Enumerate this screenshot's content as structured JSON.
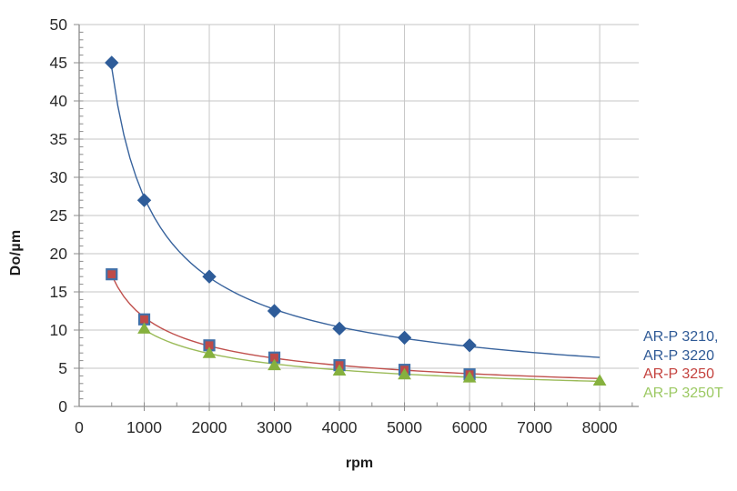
{
  "chart_data": {
    "type": "scatter",
    "title": "",
    "xlabel": "rpm",
    "ylabel": "Do/µm",
    "x_axis": {
      "min": 0,
      "max": 8600,
      "major_step": 1000,
      "minor_step": 500,
      "last_labeled_tick": 8000,
      "tick_labels": [
        "0",
        "1000",
        "2000",
        "3000",
        "4000",
        "5000",
        "6000",
        "7000",
        "8000"
      ]
    },
    "y_axis": {
      "min": 0,
      "max": 50,
      "major_step": 5,
      "minor_step": 1,
      "tick_labels": [
        "0",
        "5",
        "10",
        "15",
        "20",
        "25",
        "30",
        "35",
        "40",
        "45",
        "50"
      ]
    },
    "grid": {
      "major_gridlines": true,
      "grid_color": "#c6c6c6",
      "axis_color": "#8c8c8c",
      "tick_text_color": "#2b2b2b"
    },
    "series": [
      {
        "name": "AR-P 3210, AR-P 3220",
        "marker": "diamond",
        "line_color": "#38639d",
        "marker_fill": "#2e5c99",
        "marker_stroke": "#2e5c99",
        "points": [
          [
            500,
            45
          ],
          [
            1000,
            27
          ],
          [
            2000,
            17
          ],
          [
            3000,
            12.5
          ],
          [
            4000,
            10.2
          ],
          [
            5000,
            9
          ],
          [
            6000,
            8
          ]
        ],
        "trend_extends_to": 8000
      },
      {
        "name": "AR-P 3250",
        "marker": "square",
        "line_color": "#c0504d",
        "marker_fill": "#be4b48",
        "marker_stroke": "#4170a8",
        "points": [
          [
            500,
            17.3
          ],
          [
            1000,
            11.4
          ],
          [
            2000,
            8
          ],
          [
            3000,
            6.4
          ],
          [
            4000,
            5.4
          ],
          [
            5000,
            4.8
          ],
          [
            6000,
            4.2
          ]
        ],
        "trend_extends_to": 8000
      },
      {
        "name": "AR-P 3250T",
        "marker": "triangle",
        "line_color": "#9bbb59",
        "marker_fill": "#86b13e",
        "marker_stroke": "#86b13e",
        "points": [
          [
            1000,
            10.2
          ],
          [
            2000,
            7
          ],
          [
            3000,
            5.4
          ],
          [
            4000,
            4.7
          ],
          [
            5000,
            4.2
          ],
          [
            6000,
            3.8
          ],
          [
            8000,
            3.4
          ]
        ],
        "trend_extends_to": 8000
      }
    ],
    "legend": {
      "position": "right",
      "entries": [
        {
          "label": "AR-P 3210,",
          "color": "#2f5a96"
        },
        {
          "label": "AR-P 3220",
          "color": "#2f5a96"
        },
        {
          "label": "AR-P 3250",
          "color": "#c4423e"
        },
        {
          "label": "AR-P 3250T",
          "color": "#9cc963"
        }
      ]
    }
  }
}
